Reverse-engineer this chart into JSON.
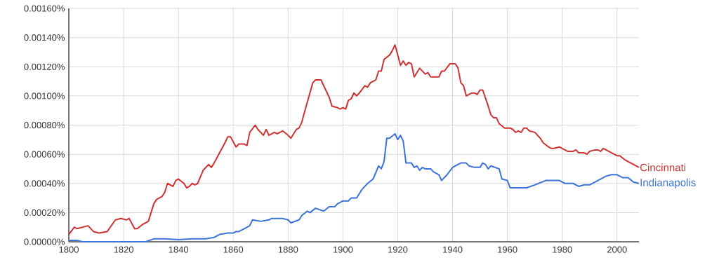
{
  "chart_data": {
    "type": "line",
    "xlim": [
      1800,
      2008
    ],
    "ylim": [
      0,
      0.0016
    ],
    "xticks": [
      1800,
      1820,
      1840,
      1860,
      1880,
      1900,
      1920,
      1940,
      1960,
      1980,
      2000
    ],
    "yticks": [
      {
        "value": 0,
        "label": "0.00000%"
      },
      {
        "value": 0.0002,
        "label": "0.00020%"
      },
      {
        "value": 0.0004,
        "label": "0.00040%"
      },
      {
        "value": 0.0006,
        "label": "0.00060%"
      },
      {
        "value": 0.0008,
        "label": "0.00080%"
      },
      {
        "value": 0.001,
        "label": "0.00100%"
      },
      {
        "value": 0.0012,
        "label": "0.00120%"
      },
      {
        "value": 0.0014,
        "label": "0.00140%"
      },
      {
        "value": 0.0016,
        "label": "0.00160%"
      }
    ],
    "grid": true,
    "legend": false,
    "marker": "none",
    "line_style": "solid",
    "series": [
      {
        "name": "Cincinnati",
        "color": "#d03232",
        "x": [
          1800,
          1802,
          1803,
          1807,
          1809,
          1811,
          1814,
          1817,
          1819,
          1821,
          1822,
          1824,
          1825,
          1827,
          1829,
          1831,
          1832,
          1834,
          1835,
          1836,
          1838,
          1839,
          1840,
          1842,
          1843,
          1844,
          1845,
          1846,
          1847,
          1849,
          1851,
          1852,
          1853,
          1855,
          1857,
          1858,
          1859,
          1861,
          1862,
          1864,
          1865,
          1866,
          1868,
          1869,
          1871,
          1872,
          1873,
          1875,
          1876,
          1878,
          1880,
          1881,
          1883,
          1884,
          1885,
          1886,
          1889,
          1890,
          1892,
          1895,
          1896,
          1898,
          1899,
          1900,
          1901,
          1902,
          1903,
          1904,
          1905,
          1906,
          1908,
          1909,
          1910,
          1911,
          1912,
          1913,
          1914,
          1915,
          1917,
          1918,
          1919,
          1921,
          1922,
          1923,
          1924,
          1925,
          1926,
          1928,
          1930,
          1931,
          1932,
          1935,
          1936,
          1937,
          1939,
          1941,
          1942,
          1943,
          1944,
          1945,
          1947,
          1948,
          1949,
          1950,
          1951,
          1953,
          1954,
          1955,
          1956,
          1957,
          1959,
          1961,
          1962,
          1963,
          1964,
          1965,
          1966,
          1967,
          1968,
          1970,
          1972,
          1973,
          1975,
          1976,
          1977,
          1979,
          1980,
          1982,
          1984,
          1985,
          1986,
          1988,
          1989,
          1990,
          1992,
          1993,
          1994,
          1995,
          1996,
          1998,
          2000,
          2001,
          2003,
          2005,
          2006,
          2008
        ],
        "values": [
          5e-05,
          0.0001,
          9e-05,
          0.00011,
          7e-05,
          6e-05,
          7e-05,
          0.00015,
          0.00016,
          0.00015,
          0.00016,
          9e-05,
          9e-05,
          0.00012,
          0.00014,
          0.00026,
          0.00029,
          0.00031,
          0.00034,
          0.0004,
          0.00038,
          0.00042,
          0.00043,
          0.0004,
          0.00037,
          0.00038,
          0.0004,
          0.00039,
          0.0004,
          0.00049,
          0.00053,
          0.00051,
          0.00054,
          0.00061,
          0.00068,
          0.00072,
          0.00072,
          0.00065,
          0.00067,
          0.00067,
          0.00066,
          0.00075,
          0.0008,
          0.00077,
          0.00073,
          0.00077,
          0.00073,
          0.00075,
          0.00074,
          0.00076,
          0.00073,
          0.00071,
          0.00077,
          0.00078,
          0.00082,
          0.00089,
          0.00109,
          0.00111,
          0.00111,
          0.00099,
          0.00093,
          0.00092,
          0.00091,
          0.00092,
          0.00091,
          0.00097,
          0.00098,
          0.00102,
          0.001,
          0.00102,
          0.00107,
          0.00106,
          0.00109,
          0.0011,
          0.00111,
          0.00117,
          0.00117,
          0.00125,
          0.00128,
          0.00131,
          0.00135,
          0.00121,
          0.00124,
          0.00121,
          0.00123,
          0.00122,
          0.00113,
          0.00119,
          0.00115,
          0.00116,
          0.00113,
          0.00113,
          0.00117,
          0.00117,
          0.00122,
          0.00122,
          0.00119,
          0.00109,
          0.00107,
          0.001,
          0.00102,
          0.00102,
          0.00101,
          0.00104,
          0.00104,
          0.00093,
          0.00087,
          0.00085,
          0.00085,
          0.00081,
          0.00078,
          0.00078,
          0.00077,
          0.00075,
          0.00076,
          0.00075,
          0.00078,
          0.00078,
          0.00076,
          0.00075,
          0.00071,
          0.00068,
          0.00065,
          0.00064,
          0.00064,
          0.00065,
          0.00064,
          0.00062,
          0.00062,
          0.00063,
          0.00061,
          0.00061,
          0.0006,
          0.00062,
          0.00063,
          0.00063,
          0.00062,
          0.00064,
          0.00063,
          0.00061,
          0.00059,
          0.00059,
          0.00056,
          0.00054,
          0.00053,
          0.00051
        ]
      },
      {
        "name": "Indianapolis",
        "color": "#3d72d9",
        "x": [
          1800,
          1803,
          1805,
          1828,
          1831,
          1835,
          1840,
          1845,
          1850,
          1853,
          1855,
          1858,
          1860,
          1861,
          1862,
          1864,
          1866,
          1867,
          1870,
          1873,
          1874,
          1878,
          1880,
          1881,
          1884,
          1885,
          1887,
          1888,
          1890,
          1893,
          1895,
          1897,
          1898,
          1900,
          1902,
          1903,
          1905,
          1907,
          1909,
          1911,
          1913,
          1914,
          1915,
          1916,
          1917,
          1919,
          1920,
          1921,
          1922,
          1923,
          1925,
          1926,
          1927,
          1928,
          1929,
          1930,
          1932,
          1933,
          1935,
          1936,
          1938,
          1940,
          1943,
          1945,
          1946,
          1948,
          1950,
          1951,
          1952,
          1953,
          1954,
          1957,
          1958,
          1960,
          1961,
          1963,
          1967,
          1970,
          1974,
          1979,
          1981,
          1984,
          1986,
          1988,
          1990,
          1993,
          1996,
          1998,
          2000,
          2002,
          2004,
          2006,
          2008
        ],
        "values": [
          1e-05,
          1e-05,
          0,
          0,
          2e-05,
          2e-05,
          1.5e-05,
          2e-05,
          2e-05,
          3e-05,
          5e-05,
          6e-05,
          6e-05,
          7e-05,
          7e-05,
          9e-05,
          0.00011,
          0.00015,
          0.00014,
          0.00015,
          0.00016,
          0.00016,
          0.00015,
          0.00013,
          0.00015,
          0.00018,
          0.00021,
          0.0002,
          0.00023,
          0.00021,
          0.00024,
          0.00024,
          0.00026,
          0.00028,
          0.00028,
          0.0003,
          0.0003,
          0.00036,
          0.0004,
          0.00043,
          0.00052,
          0.0005,
          0.00055,
          0.00071,
          0.00071,
          0.00074,
          0.0007,
          0.00073,
          0.00069,
          0.00054,
          0.00054,
          0.00051,
          0.00052,
          0.00049,
          0.00051,
          0.0005,
          0.0005,
          0.00048,
          0.00046,
          0.00042,
          0.00046,
          0.00051,
          0.00054,
          0.00054,
          0.00052,
          0.00051,
          0.00051,
          0.00054,
          0.00053,
          0.0005,
          0.00052,
          0.0005,
          0.00043,
          0.00042,
          0.00037,
          0.00037,
          0.00037,
          0.00039,
          0.00042,
          0.00042,
          0.0004,
          0.0004,
          0.00038,
          0.00039,
          0.00039,
          0.00042,
          0.00045,
          0.00046,
          0.00046,
          0.00044,
          0.00044,
          0.00041,
          0.0004
        ]
      }
    ]
  }
}
